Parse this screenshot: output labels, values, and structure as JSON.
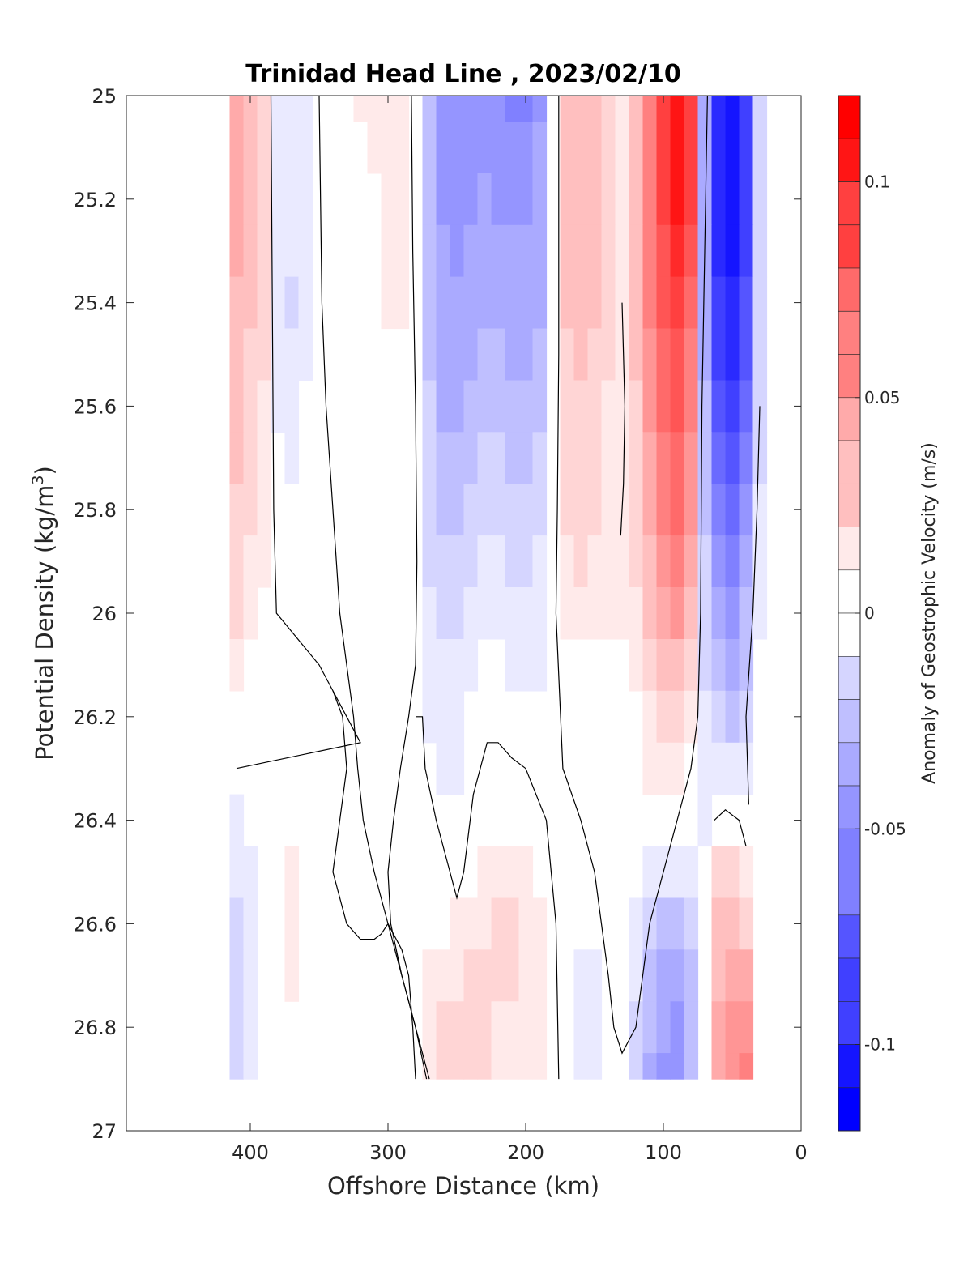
{
  "chart_data": {
    "type": "heatmap",
    "title": "Trinidad Head Line , 2023/02/10",
    "xlabel": "Offshore Distance (km)",
    "ylabel": "Potential Density (kg/m3)",
    "ylabel_main": "Potential Density (kg/m",
    "ylabel_sup": "3",
    "ylabel_end": ")",
    "xlim": [
      490,
      0
    ],
    "ylim": [
      25,
      27
    ],
    "x_reversed": true,
    "y_reversed": true,
    "x_ticks": [
      400,
      300,
      200,
      100,
      0
    ],
    "x_tick_labels": [
      "400",
      "300",
      "200",
      "100",
      "0"
    ],
    "y_ticks": [
      25,
      25.2,
      25.4,
      25.6,
      25.8,
      26,
      26.2,
      26.4,
      26.6,
      26.8,
      27
    ],
    "y_tick_labels": [
      "25",
      "25.2",
      "25.4",
      "25.6",
      "25.8",
      "26",
      "26.2",
      "26.4",
      "26.6",
      "26.8",
      "27"
    ],
    "colorbar": {
      "label": "Anomaly of Geostrophic Velocity (m/s)",
      "range": [
        -0.12,
        0.12
      ],
      "step": 0.01,
      "ticks": [
        0.1,
        0.05,
        0,
        -0.05,
        -0.1
      ],
      "tick_labels": [
        "0.1",
        "0.05",
        "0",
        "-0.05",
        "-0.1"
      ],
      "colormap": "blue-white-red"
    },
    "grid": false,
    "x": [
      410,
      400,
      390,
      380,
      370,
      360,
      350,
      340,
      330,
      320,
      310,
      300,
      290,
      280,
      270,
      260,
      250,
      240,
      230,
      220,
      210,
      200,
      190,
      180,
      170,
      160,
      150,
      140,
      130,
      120,
      110,
      100,
      90,
      80,
      70,
      60,
      50,
      40,
      30
    ],
    "y": [
      25,
      25.1,
      25.2,
      25.3,
      25.4,
      25.5,
      25.6,
      25.7,
      25.8,
      25.9,
      26,
      26.1,
      26.2,
      26.3,
      26.4,
      26.5,
      26.6,
      26.7,
      26.8,
      26.9
    ],
    "values": [
      [
        0.04,
        0.03,
        0.02,
        -0.01,
        -0.015,
        -0.01,
        0,
        0,
        0,
        0.01,
        0.01,
        0.015,
        0.01,
        0,
        -0.03,
        -0.05,
        -0.055,
        -0.055,
        -0.05,
        -0.055,
        -0.06,
        -0.06,
        -0.05,
        -0.005,
        0.03,
        0.035,
        0.035,
        0.02,
        0.01,
        0.03,
        0.06,
        0.09,
        0.11,
        0.09,
        -0.04,
        -0.1,
        -0.11,
        -0.09,
        -0.02
      ],
      [
        0.04,
        0.03,
        0.02,
        -0.01,
        -0.015,
        -0.01,
        0,
        0,
        0,
        0.005,
        0.01,
        0.015,
        0.01,
        0,
        -0.03,
        -0.05,
        -0.055,
        -0.055,
        -0.05,
        -0.05,
        -0.055,
        -0.055,
        -0.045,
        -0.005,
        0.03,
        0.035,
        0.035,
        0.02,
        0.01,
        0.03,
        0.06,
        0.09,
        0.11,
        0.09,
        -0.04,
        -0.1,
        -0.11,
        -0.09,
        -0.02
      ],
      [
        0.04,
        0.03,
        0.02,
        -0.01,
        -0.015,
        -0.01,
        0,
        0,
        0,
        0,
        0.005,
        0.015,
        0.01,
        0,
        -0.03,
        -0.05,
        -0.05,
        -0.05,
        -0.045,
        -0.05,
        -0.05,
        -0.05,
        -0.045,
        -0.005,
        0.03,
        0.035,
        0.035,
        0.02,
        0.01,
        0.03,
        0.06,
        0.09,
        0.11,
        0.09,
        -0.04,
        -0.1,
        -0.11,
        -0.09,
        -0.02
      ],
      [
        0.04,
        0.03,
        0.02,
        -0.01,
        -0.015,
        -0.01,
        0,
        0,
        0,
        0,
        0.005,
        0.015,
        0.01,
        0,
        -0.03,
        -0.045,
        -0.05,
        -0.045,
        -0.045,
        -0.045,
        -0.045,
        -0.045,
        -0.04,
        -0.005,
        0.03,
        0.035,
        0.03,
        0.02,
        0.01,
        0.03,
        0.06,
        0.085,
        0.1,
        0.08,
        -0.04,
        -0.1,
        -0.11,
        -0.09,
        -0.02
      ],
      [
        0.035,
        0.03,
        0.02,
        -0.01,
        -0.02,
        -0.01,
        0,
        0,
        0,
        0,
        0,
        0.01,
        0.01,
        0,
        -0.03,
        -0.045,
        -0.045,
        -0.045,
        -0.04,
        -0.04,
        -0.045,
        -0.045,
        -0.04,
        -0.005,
        0.03,
        0.03,
        0.03,
        0.02,
        0.01,
        0.03,
        0.06,
        0.08,
        0.09,
        0.07,
        -0.04,
        -0.09,
        -0.105,
        -0.08,
        -0.02
      ],
      [
        0.035,
        0.025,
        0.02,
        -0.01,
        -0.015,
        -0.01,
        0,
        0,
        0,
        0,
        0,
        0.005,
        0.005,
        0,
        -0.03,
        -0.04,
        -0.045,
        -0.04,
        -0.035,
        -0.035,
        -0.04,
        -0.04,
        -0.035,
        -0.005,
        0.025,
        0.03,
        0.025,
        0.02,
        0.01,
        0.03,
        0.055,
        0.075,
        0.085,
        0.065,
        -0.04,
        -0.09,
        -0.1,
        -0.08,
        -0.02
      ],
      [
        0.03,
        0.025,
        0.015,
        -0.01,
        -0.01,
        -0.005,
        0,
        0,
        0,
        0,
        0,
        0,
        0.005,
        0,
        -0.025,
        -0.04,
        -0.04,
        -0.035,
        -0.03,
        -0.03,
        -0.035,
        -0.035,
        -0.03,
        -0.005,
        0.025,
        0.025,
        0.025,
        0.015,
        0.01,
        0.025,
        0.05,
        0.07,
        0.08,
        0.06,
        -0.035,
        -0.08,
        -0.09,
        -0.07,
        -0.02
      ],
      [
        0.03,
        0.02,
        0.015,
        -0.005,
        -0.01,
        -0.005,
        0,
        0,
        0,
        0,
        0,
        0,
        0,
        0,
        -0.025,
        -0.035,
        -0.035,
        -0.03,
        -0.025,
        -0.025,
        -0.03,
        -0.03,
        -0.025,
        -0.005,
        0.02,
        0.025,
        0.02,
        0.015,
        0.01,
        0.025,
        0.045,
        0.065,
        0.075,
        0.055,
        -0.03,
        -0.07,
        -0.08,
        -0.06,
        -0.02
      ],
      [
        0.025,
        0.02,
        0.01,
        0,
        0,
        0,
        0,
        0,
        0,
        0,
        0,
        0,
        0,
        0,
        -0.02,
        -0.03,
        -0.03,
        -0.025,
        -0.02,
        -0.02,
        -0.025,
        -0.025,
        -0.02,
        -0.005,
        0.02,
        0.02,
        0.02,
        0.015,
        0.01,
        0.02,
        0.04,
        0.06,
        0.07,
        0.05,
        -0.03,
        -0.06,
        -0.07,
        -0.05,
        -0.015
      ],
      [
        0.02,
        0.015,
        0.01,
        0,
        0,
        0,
        0,
        0,
        0,
        0,
        0,
        0,
        0,
        0,
        -0.02,
        -0.025,
        -0.025,
        -0.02,
        -0.015,
        -0.015,
        -0.02,
        -0.02,
        -0.015,
        -0.005,
        0.015,
        0.02,
        0.015,
        0.01,
        0.01,
        0.02,
        0.035,
        0.05,
        0.06,
        0.045,
        -0.025,
        -0.05,
        -0.06,
        -0.04,
        -0.01
      ],
      [
        0.02,
        0.015,
        0.005,
        0,
        0,
        0,
        0,
        0,
        0,
        0,
        0,
        0,
        0,
        0,
        -0.015,
        -0.02,
        -0.02,
        -0.015,
        -0.01,
        -0.01,
        -0.015,
        -0.015,
        -0.015,
        -0.005,
        0.01,
        0.015,
        0.01,
        0.01,
        0.01,
        0.015,
        0.03,
        0.04,
        0.05,
        0.035,
        -0.025,
        -0.045,
        -0.05,
        -0.035,
        -0.01
      ],
      [
        0.01,
        0.005,
        0,
        0,
        0,
        0,
        0,
        0,
        0,
        0,
        0,
        0,
        0,
        0,
        -0.01,
        -0.015,
        -0.015,
        -0.01,
        -0.005,
        -0.005,
        -0.01,
        -0.01,
        -0.01,
        0,
        0,
        0.005,
        0.005,
        0.005,
        0.005,
        0.01,
        0.02,
        0.03,
        0.035,
        0.025,
        -0.02,
        -0.035,
        -0.04,
        -0.03,
        -0.005
      ],
      [
        0.005,
        0,
        0,
        0,
        0,
        0,
        0,
        0,
        0,
        0,
        0,
        0,
        0,
        0,
        -0.01,
        -0.01,
        -0.01,
        -0.005,
        0,
        0,
        -0.005,
        -0.005,
        -0.005,
        0,
        0,
        0,
        0,
        0,
        0,
        0.005,
        0.015,
        0.02,
        0.025,
        0.015,
        -0.015,
        -0.025,
        -0.03,
        -0.02,
        0
      ],
      [
        0,
        0,
        0,
        0,
        0,
        0,
        0,
        0,
        0,
        0,
        0,
        0,
        0,
        0,
        -0.005,
        -0.01,
        -0.01,
        -0.005,
        0,
        0,
        0,
        0,
        0,
        0,
        0,
        0,
        0,
        0,
        0,
        0,
        0.01,
        0.015,
        0.015,
        0.005,
        -0.01,
        -0.015,
        -0.015,
        -0.01,
        0
      ],
      [
        -0.01,
        -0.005,
        0,
        0,
        0.005,
        0,
        0,
        0,
        0,
        0,
        0,
        0,
        0,
        0,
        0,
        -0.005,
        -0.005,
        0,
        0,
        0.005,
        0.005,
        0.005,
        0,
        0,
        0,
        0,
        0,
        0,
        0,
        0,
        0,
        0,
        0,
        -0.005,
        -0.01,
        0,
        0.005,
        0,
        0
      ],
      [
        -0.01,
        -0.01,
        0,
        0,
        0.01,
        0,
        0,
        0,
        0,
        0,
        0,
        0,
        0,
        0,
        0,
        0,
        0,
        0.005,
        0.01,
        0.015,
        0.015,
        0.01,
        0.005,
        0,
        0,
        0,
        0,
        0,
        0,
        0,
        -0.01,
        -0.015,
        -0.015,
        -0.01,
        0,
        0.02,
        0.02,
        0.01,
        0
      ],
      [
        -0.02,
        -0.015,
        0,
        0,
        0.01,
        0,
        0,
        0,
        0,
        0,
        0,
        0,
        0,
        0,
        0.005,
        0.005,
        0.01,
        0.015,
        0.015,
        0.02,
        0.02,
        0.015,
        0.01,
        0,
        0,
        0,
        -0.005,
        0,
        0,
        -0.01,
        -0.02,
        -0.03,
        -0.035,
        -0.02,
        0,
        0.03,
        0.035,
        0.02,
        0
      ],
      [
        -0.02,
        -0.015,
        0,
        0,
        0.01,
        0,
        0,
        0,
        0,
        0,
        0,
        0,
        0,
        0,
        0.01,
        0.015,
        0.015,
        0.02,
        0.02,
        0.02,
        0.02,
        0.015,
        0.01,
        0,
        0,
        -0.01,
        -0.01,
        0,
        0,
        -0.015,
        -0.03,
        -0.04,
        -0.045,
        -0.03,
        0,
        0.035,
        0.045,
        0.04,
        0
      ],
      [
        -0.025,
        -0.015,
        0,
        0,
        0,
        0,
        0,
        0,
        0,
        0,
        0,
        0,
        0,
        0,
        0.015,
        0.02,
        0.025,
        0.02,
        0.02,
        0.015,
        0.015,
        0.01,
        0.01,
        0,
        0,
        -0.01,
        -0.01,
        0,
        0,
        -0.02,
        -0.035,
        -0.045,
        -0.05,
        -0.035,
        0,
        0.04,
        0.05,
        0.05,
        0
      ],
      [
        -0.025,
        -0.015,
        0,
        0.005,
        0,
        0,
        0,
        0,
        0,
        0,
        0,
        0,
        0,
        0,
        0.015,
        0.025,
        0.025,
        0.02,
        0.02,
        0.015,
        0.015,
        0.01,
        0.01,
        0,
        0,
        -0.01,
        -0.01,
        0,
        0,
        -0.02,
        -0.04,
        -0.05,
        -0.05,
        -0.035,
        0,
        0.045,
        0.055,
        0.06,
        0
      ]
    ],
    "nan_mask_note": "",
    "zero_contours": [
      [
        [
          385,
          25
        ],
        [
          384,
          25.4
        ],
        [
          383,
          25.8
        ],
        [
          381,
          26
        ],
        [
          350,
          26.1
        ],
        [
          330,
          26.2
        ],
        [
          320,
          26.25
        ],
        [
          410,
          26.3
        ]
      ],
      [
        [
          350,
          25
        ],
        [
          348,
          25.4
        ],
        [
          345,
          25.6
        ],
        [
          340,
          25.8
        ],
        [
          335,
          26
        ],
        [
          330,
          26.1
        ],
        [
          325,
          26.2
        ],
        [
          322,
          26.3
        ],
        [
          318,
          26.4
        ],
        [
          310,
          26.5
        ],
        [
          305,
          26.55
        ],
        [
          300,
          26.6
        ],
        [
          290,
          26.7
        ],
        [
          280,
          26.8
        ],
        [
          275,
          26.85
        ],
        [
          270,
          26.9
        ]
      ],
      [
        [
          283,
          25
        ],
        [
          282,
          25.3
        ],
        [
          280,
          25.6
        ],
        [
          279,
          25.9
        ],
        [
          280,
          26.1
        ],
        [
          285,
          26.2
        ],
        [
          291,
          26.3
        ],
        [
          296,
          26.4
        ],
        [
          300,
          26.5
        ],
        [
          298,
          26.6
        ],
        [
          290,
          26.7
        ],
        [
          280,
          26.8
        ],
        [
          272,
          26.9
        ]
      ],
      [
        [
          176,
          25
        ],
        [
          176,
          25.5
        ],
        [
          177,
          25.8
        ],
        [
          178,
          26
        ],
        [
          173,
          26.3
        ],
        [
          160,
          26.4
        ],
        [
          150,
          26.5
        ],
        [
          145,
          26.6
        ],
        [
          140,
          26.7
        ],
        [
          136,
          26.8
        ],
        [
          130,
          26.85
        ],
        [
          120,
          26.8
        ],
        [
          115,
          26.7
        ],
        [
          110,
          26.6
        ],
        [
          100,
          26.5
        ],
        [
          90,
          26.4
        ],
        [
          80,
          26.3
        ],
        [
          75,
          26.2
        ],
        [
          73,
          26
        ],
        [
          72,
          25.6
        ],
        [
          70,
          25.3
        ],
        [
          68,
          25
        ]
      ],
      [
        [
          130,
          25.4
        ],
        [
          128,
          25.6
        ],
        [
          129,
          25.75
        ],
        [
          131,
          25.85
        ]
      ],
      [
        [
          63,
          26.4
        ],
        [
          55,
          26.38
        ],
        [
          45,
          26.4
        ],
        [
          40,
          26.45
        ]
      ],
      [
        [
          38,
          26.37
        ],
        [
          40,
          26.2
        ],
        [
          35,
          26
        ],
        [
          32,
          25.8
        ],
        [
          30,
          25.6
        ]
      ]
    ],
    "aux_contours": [
      [
        [
          340,
          26.15
        ],
        [
          333,
          26.2
        ],
        [
          330,
          26.3
        ],
        [
          335,
          26.4
        ],
        [
          340,
          26.5
        ],
        [
          330,
          26.6
        ],
        [
          320,
          26.63
        ],
        [
          310,
          26.63
        ],
        [
          305,
          26.62
        ],
        [
          300,
          26.6
        ],
        [
          290,
          26.65
        ],
        [
          285,
          26.7
        ],
        [
          282,
          26.8
        ],
        [
          280,
          26.9
        ]
      ],
      [
        [
          280,
          26.2
        ],
        [
          275,
          26.2
        ],
        [
          273,
          26.3
        ],
        [
          265,
          26.4
        ],
        [
          255,
          26.5
        ],
        [
          250,
          26.55
        ],
        [
          245,
          26.5
        ],
        [
          238,
          26.35
        ],
        [
          228,
          26.25
        ],
        [
          220,
          26.25
        ],
        [
          210,
          26.28
        ],
        [
          200,
          26.3
        ],
        [
          185,
          26.4
        ],
        [
          178,
          26.6
        ],
        [
          176,
          26.9
        ]
      ]
    ]
  }
}
